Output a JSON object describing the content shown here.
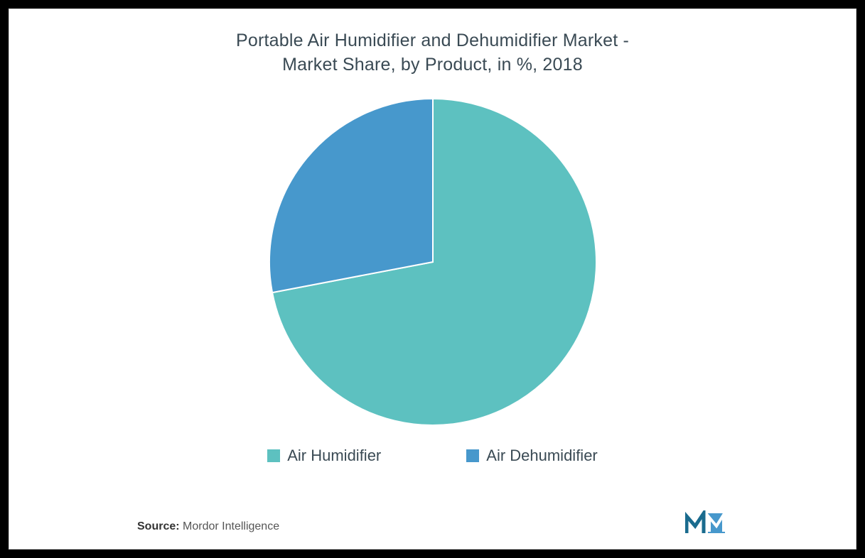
{
  "chart": {
    "type": "pie",
    "title_line1": "Portable Air Humidifier and Dehumidifier Market -",
    "title_line2": "Market Share, by Product, in %, 2018",
    "title_fontsize": 25,
    "title_color": "#3a4a54",
    "background_color": "#ffffff",
    "outer_background": "#000000",
    "pie_radius": 230,
    "slices": [
      {
        "label": "Air Humidifier",
        "value": 72,
        "color": "#5dc1c0"
      },
      {
        "label": "Air Dehumidifier",
        "value": 28,
        "color": "#4798cc"
      }
    ],
    "slice_border_color": "#ffffff",
    "slice_border_width": 2,
    "legend": {
      "items": [
        {
          "label": "Air Humidifier",
          "color": "#5dc1c0"
        },
        {
          "label": "Air Dehumidifier",
          "color": "#4798cc"
        }
      ],
      "fontsize": 22,
      "text_color": "#3a4a54"
    }
  },
  "source": {
    "label": "Source:",
    "value": "Mordor Intelligence"
  },
  "logo": {
    "name": "mordor-intelligence-logo",
    "primary_color": "#1a6b8e",
    "accent_color": "#4798cc"
  }
}
